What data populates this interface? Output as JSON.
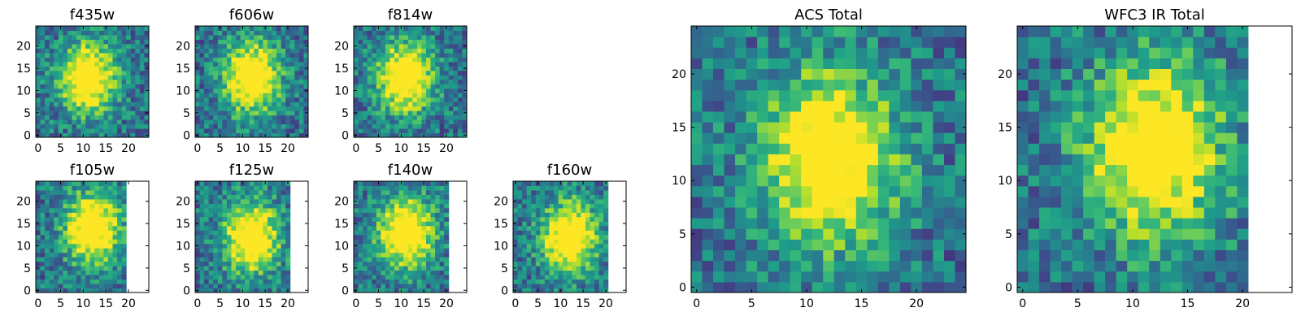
{
  "chart_data": [
    {
      "type": "heatmap",
      "title": "f435w",
      "xlim": [
        0,
        24
      ],
      "ylim": [
        0,
        24
      ],
      "xticks": [
        0,
        5,
        10,
        15,
        20
      ],
      "yticks": [
        0,
        5,
        10,
        15,
        20
      ],
      "colormap": "viridis",
      "blank_from_x": null,
      "peak": [
        11,
        13
      ]
    },
    {
      "type": "heatmap",
      "title": "f606w",
      "xlim": [
        0,
        24
      ],
      "ylim": [
        0,
        24
      ],
      "xticks": [
        0,
        5,
        10,
        15,
        20
      ],
      "yticks": [
        0,
        5,
        10,
        15,
        20
      ],
      "colormap": "viridis",
      "blank_from_x": null,
      "peak": [
        12,
        13
      ]
    },
    {
      "type": "heatmap",
      "title": "f814w",
      "xlim": [
        0,
        24
      ],
      "ylim": [
        0,
        24
      ],
      "xticks": [
        0,
        5,
        10,
        15,
        20
      ],
      "yticks": [
        0,
        5,
        10,
        15,
        20
      ],
      "colormap": "viridis",
      "blank_from_x": null,
      "peak": [
        11,
        13
      ]
    },
    {
      "type": "heatmap",
      "title": "f105w",
      "xlim": [
        0,
        24
      ],
      "ylim": [
        0,
        24
      ],
      "xticks": [
        0,
        5,
        10,
        15,
        20
      ],
      "yticks": [
        0,
        5,
        10,
        15,
        20
      ],
      "colormap": "viridis",
      "blank_from_x": 19,
      "peak": [
        12,
        14
      ]
    },
    {
      "type": "heatmap",
      "title": "f125w",
      "xlim": [
        0,
        24
      ],
      "ylim": [
        0,
        24
      ],
      "xticks": [
        0,
        5,
        10,
        15,
        20
      ],
      "yticks": [
        0,
        5,
        10,
        15,
        20
      ],
      "colormap": "viridis",
      "blank_from_x": 20,
      "peak": [
        12,
        12
      ]
    },
    {
      "type": "heatmap",
      "title": "f140w",
      "xlim": [
        0,
        24
      ],
      "ylim": [
        0,
        24
      ],
      "xticks": [
        0,
        5,
        10,
        15,
        20
      ],
      "yticks": [
        0,
        5,
        10,
        15,
        20
      ],
      "colormap": "viridis",
      "blank_from_x": 20,
      "peak": [
        11,
        13
      ]
    },
    {
      "type": "heatmap",
      "title": "f160w",
      "xlim": [
        0,
        24
      ],
      "ylim": [
        0,
        24
      ],
      "xticks": [
        0,
        5,
        10,
        15,
        20
      ],
      "yticks": [
        0,
        5,
        10,
        15,
        20
      ],
      "colormap": "viridis",
      "blank_from_x": 20,
      "peak": [
        12,
        12
      ]
    },
    {
      "type": "heatmap",
      "title": "ACS Total",
      "xlim": [
        0,
        24
      ],
      "ylim": [
        0,
        24
      ],
      "xticks": [
        0,
        5,
        10,
        15,
        20
      ],
      "yticks": [
        0,
        5,
        10,
        15,
        20
      ],
      "colormap": "viridis",
      "blank_from_x": null,
      "peak": [
        12,
        12
      ]
    },
    {
      "type": "heatmap",
      "title": "WFC3 IR Total",
      "xlim": [
        0,
        24
      ],
      "ylim": [
        0,
        24
      ],
      "xticks": [
        0,
        5,
        10,
        15,
        20
      ],
      "yticks": [
        0,
        5,
        10,
        15,
        20
      ],
      "colormap": "viridis",
      "blank_from_x": 20,
      "peak": [
        12,
        13
      ]
    }
  ]
}
